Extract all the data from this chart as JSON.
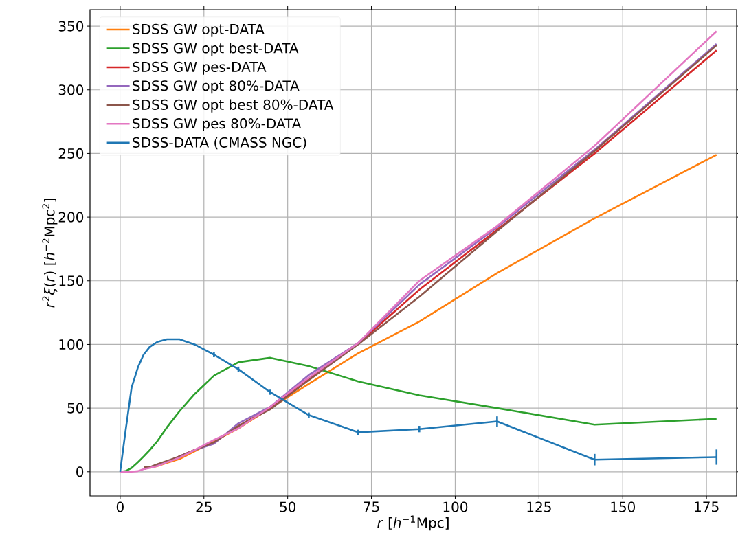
{
  "chart_data": {
    "type": "line",
    "xlabel": "*r* [*h*$^{−1}$Mpc]",
    "ylabel": "*r*$^{2}$*ξ*(*r*) [*h*$^{−2}$Mpc$^{2}$]",
    "x": [
      0,
      1.6,
      3.4,
      5.3,
      7,
      8.8,
      11.1,
      14,
      17.7,
      22.2,
      28,
      35.3,
      44.8,
      56.3,
      71,
      89.3,
      112.5,
      141.6,
      178
    ],
    "series": [
      {
        "name": "SDSS GW opt-DATA",
        "color": "#ff7f0e",
        "values": [
          null,
          null,
          null,
          null,
          null,
          3,
          4.5,
          7,
          10,
          16,
          24,
          34,
          50,
          69,
          93,
          118,
          156,
          199,
          249
        ]
      },
      {
        "name": "SDSS GW opt best-DATA",
        "color": "#2ca02c",
        "values": [
          0,
          0.5,
          3,
          7.5,
          12,
          17,
          24,
          35,
          47.5,
          61,
          75.5,
          86,
          89.5,
          83,
          71,
          60,
          50,
          37,
          41.5
        ]
      },
      {
        "name": "SDSS GW pes-DATA",
        "color": "#d62728",
        "values": [
          null,
          null,
          null,
          null,
          2,
          3.5,
          5,
          8,
          12,
          17,
          23,
          36,
          50,
          73,
          100.5,
          143,
          190,
          250,
          331
        ]
      },
      {
        "name": "SDSS GW opt 80%-DATA",
        "color": "#9467bd",
        "values": [
          null,
          null,
          null,
          null,
          2,
          3.5,
          5.5,
          8,
          12,
          17,
          22,
          38,
          51,
          76,
          101,
          147,
          192,
          253,
          336
        ]
      },
      {
        "name": "SDSS GW opt best 80%-DATA",
        "color": "#8c564b",
        "values": [
          null,
          null,
          null,
          null,
          3.5,
          3.5,
          6,
          8.5,
          12,
          17,
          23,
          36,
          49,
          72,
          100,
          137.5,
          189,
          252,
          335
        ]
      },
      {
        "name": "SDSS GW pes 80%-DATA",
        "color": "#e377c2",
        "values": [
          0,
          0,
          0,
          0.5,
          2,
          3,
          4.5,
          7.5,
          11,
          17,
          25,
          34,
          51,
          74,
          101,
          150,
          193,
          256,
          346
        ]
      },
      {
        "name": "SDSS-DATA (CMASS NGC)",
        "color": "#1f77b4",
        "values": [
          0,
          32,
          66,
          82,
          92,
          98,
          102,
          104,
          104,
          100,
          92,
          80.5,
          62.5,
          44.5,
          31,
          33.5,
          39.5,
          9.5,
          11.5
        ],
        "errors": [
          null,
          null,
          null,
          null,
          null,
          null,
          null,
          null,
          null,
          null,
          2,
          2,
          2,
          2,
          2,
          2.5,
          4,
          4.5,
          6
        ]
      }
    ],
    "xlim": [
      -9,
      184
    ],
    "ylim": [
      -19,
      363
    ],
    "xticks": [
      0,
      25,
      50,
      75,
      100,
      125,
      150,
      175
    ],
    "yticks": [
      0,
      50,
      100,
      150,
      200,
      250,
      300,
      350
    ],
    "grid": true,
    "legend": "top left"
  }
}
